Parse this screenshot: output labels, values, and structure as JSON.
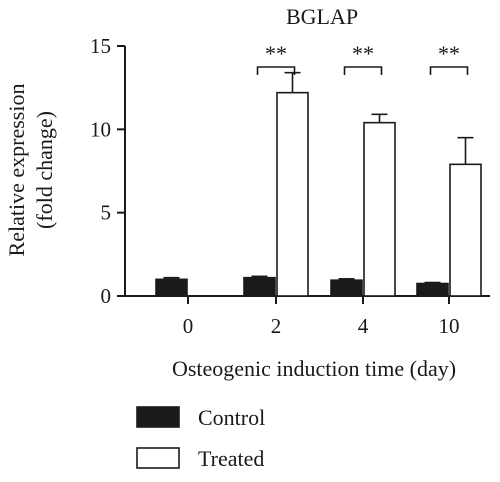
{
  "chart_data": {
    "type": "bar",
    "title": "BGLAP",
    "xlabel": "Osteogenic induction time (day)",
    "ylabel_line1": "Relative expression",
    "ylabel_line2": "(fold change)",
    "categories": [
      "0",
      "2",
      "4",
      "10"
    ],
    "ylim": [
      0,
      15
    ],
    "yticks": [
      0,
      5,
      10,
      15
    ],
    "series": [
      {
        "name": "Control",
        "values": [
          1.0,
          1.1,
          0.95,
          0.75
        ],
        "errors": [
          0.1,
          0.08,
          0.08,
          0.06
        ],
        "color": "#1a1a1a"
      },
      {
        "name": "Treated",
        "values": [
          null,
          12.2,
          10.4,
          7.9
        ],
        "errors": [
          null,
          1.2,
          0.5,
          1.6
        ],
        "color": "#ffffff"
      }
    ],
    "significance": [
      {
        "category": "2",
        "label": "**"
      },
      {
        "category": "4",
        "label": "**"
      },
      {
        "category": "10",
        "label": "**"
      }
    ],
    "legend_position": "bottom-left",
    "grid": false
  }
}
